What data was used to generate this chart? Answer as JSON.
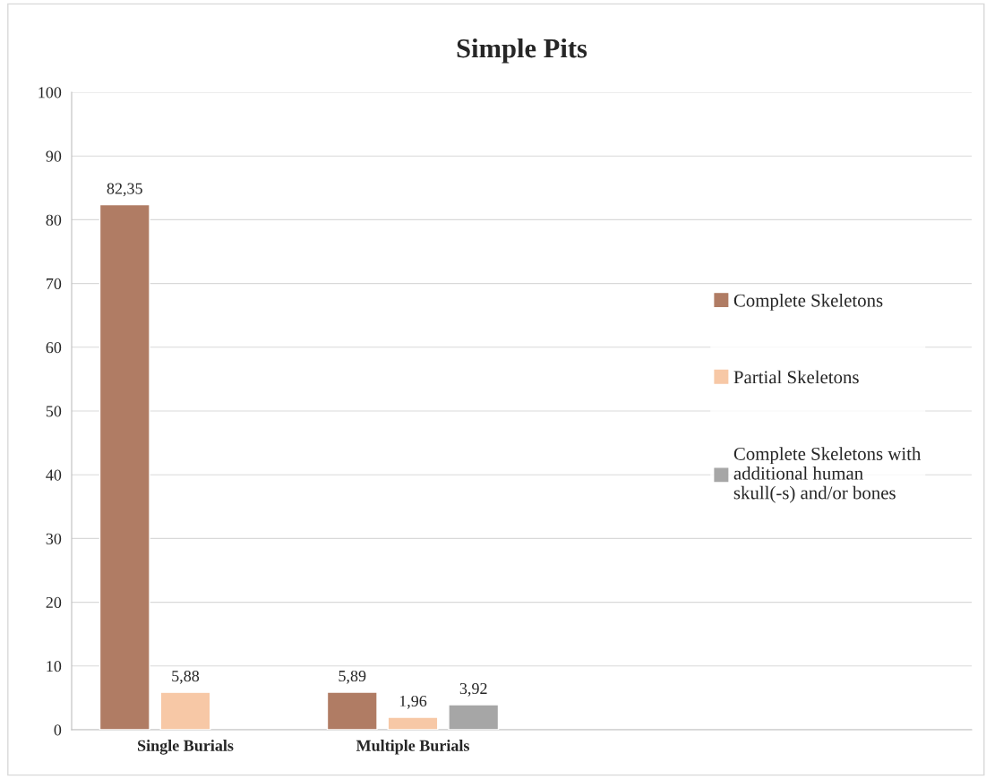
{
  "chart_data": {
    "type": "bar",
    "title": "Simple Pits",
    "categories": [
      "Single Burials",
      "Multiple Burials"
    ],
    "series": [
      {
        "name": "Complete Skeletons",
        "color": "#b07c64",
        "values": [
          82.35,
          5.89
        ],
        "value_labels": [
          "82,35",
          "5,89"
        ]
      },
      {
        "name": "Partial Skeletons",
        "color": "#f7c8a6",
        "values": [
          5.88,
          1.96
        ],
        "value_labels": [
          "5,88",
          "1,96"
        ]
      },
      {
        "name": "Complete Skeletons with additional human skull(-s) and/or bones",
        "color": "#a6a6a6",
        "values": [
          null,
          3.92
        ],
        "value_labels": [
          null,
          "3,92"
        ]
      }
    ],
    "ylim": [
      0,
      100
    ],
    "yticks": [
      0,
      10,
      20,
      30,
      40,
      50,
      60,
      70,
      80,
      90,
      100
    ],
    "grid": "y",
    "legend": "right"
  }
}
